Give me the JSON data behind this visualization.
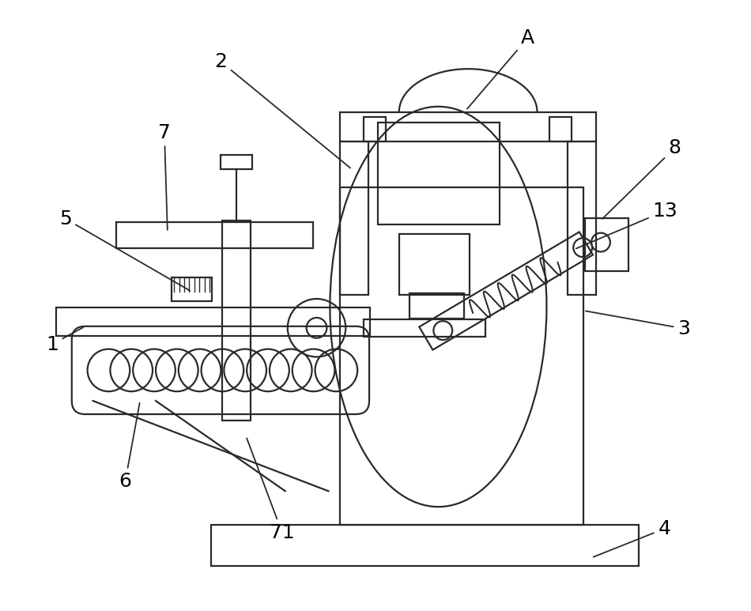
{
  "bg_color": "#ffffff",
  "line_color": "#2a2a2a",
  "lw": 1.6,
  "label_fontsize": 18,
  "figsize": [
    9.5,
    7.73
  ]
}
